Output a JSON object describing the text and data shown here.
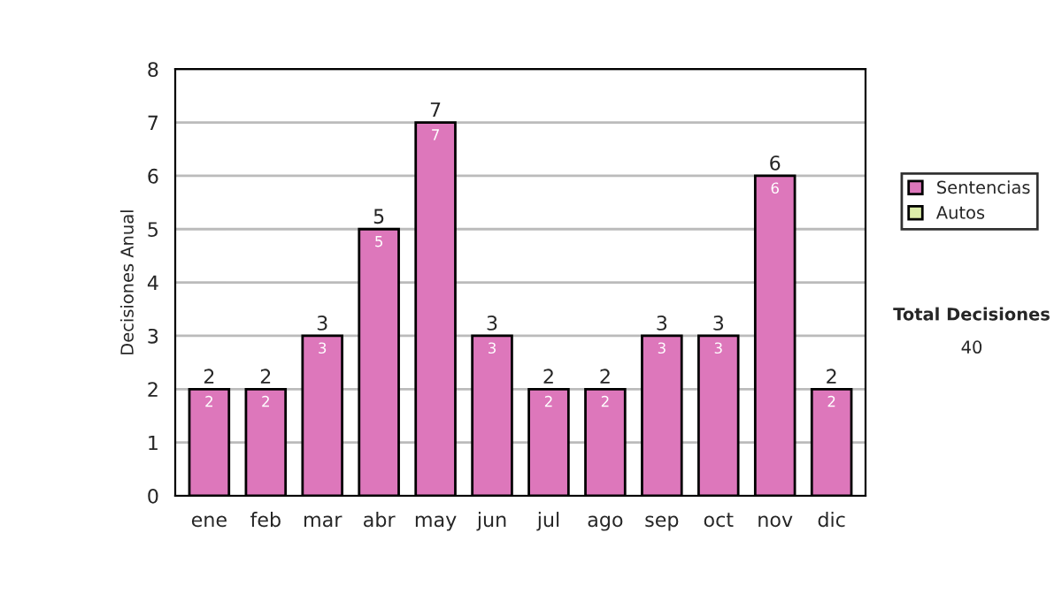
{
  "chart_data": {
    "type": "bar",
    "stacked": true,
    "ylabel": "Decisiones Anual",
    "categories": [
      "ene",
      "feb",
      "mar",
      "abr",
      "may",
      "jun",
      "jul",
      "ago",
      "sep",
      "oct",
      "nov",
      "dic"
    ],
    "series": [
      {
        "name": "Sentencias",
        "color": "#dd77bb",
        "values": [
          2,
          2,
          3,
          5,
          7,
          3,
          2,
          2,
          3,
          3,
          6,
          2
        ],
        "value_labels": [
          "2",
          "2",
          "3",
          "5",
          "7",
          "3",
          "2",
          "2",
          "3",
          "3",
          "6",
          "2"
        ]
      },
      {
        "name": "Autos",
        "color": "#ddeeaa",
        "values": [
          0,
          0,
          0,
          0,
          0,
          0,
          0,
          0,
          0,
          0,
          0,
          0
        ]
      }
    ],
    "totals": [
      "2",
      "2",
      "3",
      "5",
      "7",
      "3",
      "2",
      "2",
      "3",
      "3",
      "6",
      "2"
    ],
    "ylim": [
      0,
      8
    ],
    "yticks": [
      0,
      1,
      2,
      3,
      4,
      5,
      6,
      7,
      8
    ],
    "grid": "y",
    "legend": "right",
    "annotations": [
      "Total Decisiones",
      "40"
    ]
  }
}
